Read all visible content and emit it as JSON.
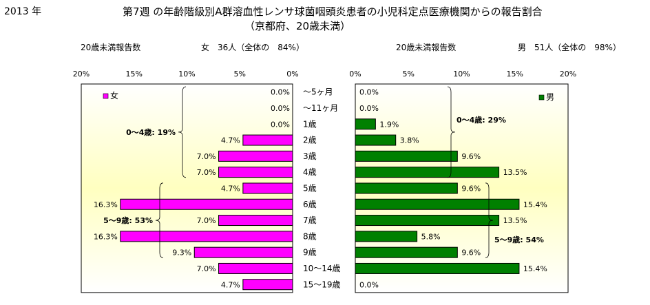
{
  "header": {
    "year": "2013 年",
    "title": "第7週 の年齢階級別A群溶血性レンサ球菌咽頭炎患者の小児科定点医療機関からの報告割合",
    "subtitle": "（京都府、20歳未満）"
  },
  "chart_data": {
    "type": "bar",
    "orientation": "horizontal",
    "grid": false,
    "categories": [
      "～5ヶ月",
      "～11ヶ月",
      "1歳",
      "2歳",
      "3歳",
      "4歳",
      "5歳",
      "6歳",
      "7歳",
      "8歳",
      "9歳",
      "10～14歳",
      "15～19歳"
    ],
    "x_ticks": [
      "0%",
      "5%",
      "10%",
      "15%",
      "20%"
    ],
    "xlim": [
      0,
      20
    ],
    "panels": [
      {
        "side": "left",
        "reversed": true,
        "count_label": "20歳未満報告数",
        "count_text": "女　36人（全体の　84%）",
        "legend": "女",
        "legend_position": "top-left",
        "color": "#ff00ff",
        "values": [
          0.0,
          0.0,
          0.0,
          4.7,
          7.0,
          7.0,
          4.7,
          16.3,
          7.0,
          16.3,
          9.3,
          7.0,
          4.7
        ],
        "labels": [
          "0.0%",
          "0.0%",
          "0.0%",
          "4.7%",
          "7.0%",
          "7.0%",
          "4.7%",
          "16.3%",
          "7.0%",
          "16.3%",
          "9.3%",
          "7.0%",
          "4.7%"
        ],
        "groups": [
          {
            "text": "0～4歳: 19%",
            "from": 0,
            "to": 5
          },
          {
            "text": "5～9歳: 53%",
            "from": 6,
            "to": 10
          }
        ]
      },
      {
        "side": "right",
        "reversed": false,
        "count_label": "20歳未満報告数",
        "count_text": "男　51人（全体の　98%）",
        "legend": "男",
        "legend_position": "top-right",
        "color": "#008000",
        "values": [
          0.0,
          0.0,
          1.9,
          3.8,
          9.6,
          13.5,
          9.6,
          15.4,
          13.5,
          5.8,
          9.6,
          15.4,
          0.0
        ],
        "labels": [
          "0.0%",
          "0.0%",
          "1.9%",
          "3.8%",
          "9.6%",
          "13.5%",
          "9.6%",
          "15.4%",
          "13.5%",
          "5.8%",
          "9.6%",
          "15.4%",
          "0.0%"
        ],
        "groups": [
          {
            "text": "0～4歳: 29%",
            "from": 0,
            "to": 5
          },
          {
            "text": "5～9歳: 54%",
            "from": 6,
            "to": 10
          }
        ]
      }
    ]
  }
}
